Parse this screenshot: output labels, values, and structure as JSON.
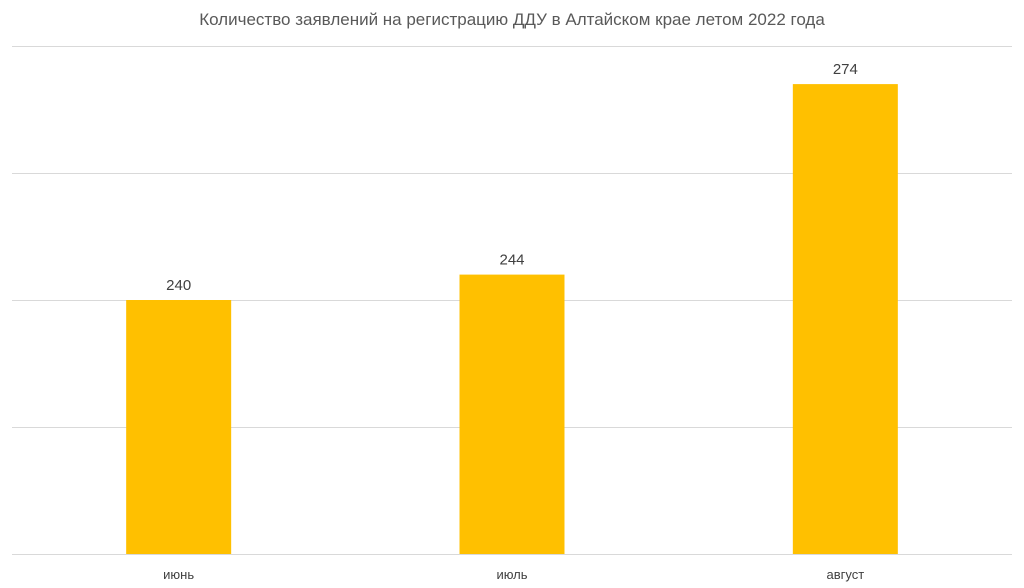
{
  "chart_data": {
    "type": "bar",
    "title": "Количество заявлений на регистрацию ДДУ в Алтайском крае летом 2022 года",
    "xlabel": "",
    "ylabel": "",
    "categories": [
      "июнь",
      "июль",
      "август"
    ],
    "values": [
      240,
      244,
      274
    ],
    "ylim": [
      200,
      280
    ],
    "grid": true,
    "legend": "none",
    "colors": {
      "bar": "#FFC000",
      "grid": "#D9D9D9",
      "text": "#404040",
      "title": "#595959"
    }
  }
}
